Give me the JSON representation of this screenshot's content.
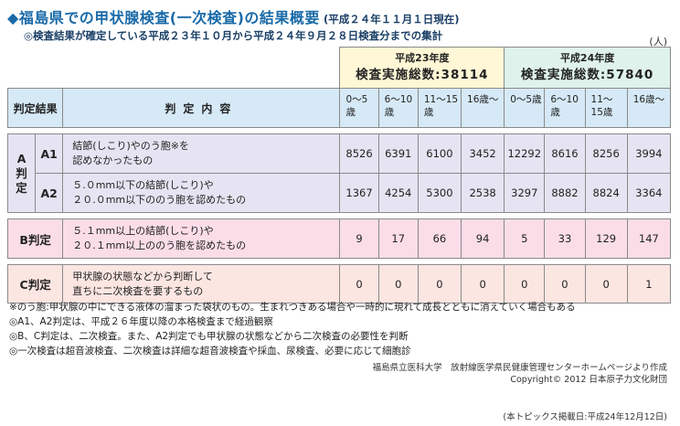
{
  "title": {
    "main": "◆福島県での甲状腺検査(一次検査)の結果概要",
    "date": "(平成２４年１１月１日現在)"
  },
  "subtitle": "◎検査結果が確定している平成２３年１０月から平成２４年９月２８日検査分までの集計",
  "unit": "(人)",
  "years": [
    {
      "label": "平成23年度",
      "total": "検査実施総数:38114"
    },
    {
      "label": "平成24年度",
      "total": "検査実施総数:57840"
    }
  ],
  "headers": {
    "judgment": "判定結果",
    "contents": "判定内容",
    "ages": [
      "0～5歳",
      "6～10歳",
      "11～15歳",
      "16歳～",
      "0～5歳",
      "6～10歳",
      "11～15歳",
      "16歳～"
    ]
  },
  "groups": {
    "a_label": "A判定",
    "a1": {
      "code": "A1",
      "desc_1": "結節(しこり)やのう胞※を",
      "desc_2": "認めなかったもの",
      "values": [
        "8526",
        "6391",
        "6100",
        "3452",
        "12292",
        "8616",
        "8256",
        "3994"
      ]
    },
    "a2": {
      "code": "A2",
      "desc_1": "５.０mm以下の結節(しこり)や",
      "desc_2": "２０.０mm以下ののう胞を認めたもの",
      "values": [
        "1367",
        "4254",
        "5300",
        "2538",
        "3297",
        "8882",
        "8824",
        "3364"
      ]
    },
    "b": {
      "code": "B判定",
      "desc_1": "５.１mm以上の結節(しこり)や",
      "desc_2": "２０.１mm以上ののう胞を認めたもの",
      "values": [
        "9",
        "17",
        "66",
        "94",
        "5",
        "33",
        "129",
        "147"
      ]
    },
    "c": {
      "code": "C判定",
      "desc_1": "甲状腺の状態などから判断して",
      "desc_2": "直ちに二次検査を要するもの",
      "values": [
        "0",
        "0",
        "0",
        "0",
        "0",
        "0",
        "0",
        "1"
      ]
    }
  },
  "notes": [
    "※のう胞:甲状腺の中にできる液体の溜まった袋状のもの。生まれつきある場合や一時的に現れて成長とともに消えていく場合もある",
    "◎A1、A2判定は、平成２６年度以降の本格検査まで経過観察",
    "◎B、C判定は、二次検査。また、A2判定でも甲状腺の状態などから二次検査の必要性を判断",
    "◎一次検査は超音波検査、二次検査は詳細な超音波検査や採血、尿検査、必要に応じて細胞診"
  ],
  "credit": {
    "line1": "福島県立医科大学　放射線医学県民健康管理センターホームページより作成",
    "line2": "Copyright© 2012 日本原子力文化財団"
  },
  "footer": "(本トピックス掲載日:平成24年12月12日)"
}
